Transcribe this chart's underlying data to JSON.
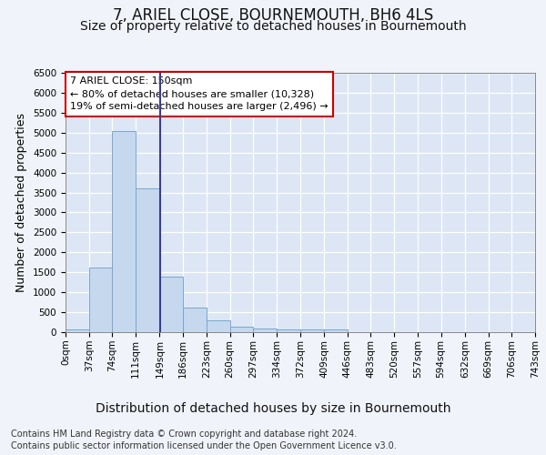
{
  "title": "7, ARIEL CLOSE, BOURNEMOUTH, BH6 4LS",
  "subtitle": "Size of property relative to detached houses in Bournemouth",
  "xlabel": "Distribution of detached houses by size in Bournemouth",
  "ylabel": "Number of detached properties",
  "footer_line1": "Contains HM Land Registry data © Crown copyright and database right 2024.",
  "footer_line2": "Contains public sector information licensed under the Open Government Licence v3.0.",
  "bar_edges": [
    0,
    37,
    74,
    111,
    149,
    186,
    223,
    260,
    297,
    334,
    372,
    409,
    446,
    483,
    520,
    557,
    594,
    632,
    669,
    706,
    743
  ],
  "bar_heights": [
    75,
    1625,
    5050,
    3600,
    1400,
    620,
    290,
    140,
    100,
    75,
    65,
    60,
    0,
    0,
    0,
    0,
    0,
    0,
    0,
    0
  ],
  "bar_color": "#c5d8ee",
  "bar_edge_color": "#7ba7d0",
  "property_size": 150,
  "property_line_color": "#3a3a9a",
  "annotation_text": "7 ARIEL CLOSE: 150sqm\n← 80% of detached houses are smaller (10,328)\n19% of semi-detached houses are larger (2,496) →",
  "annotation_box_color": "#cc0000",
  "ylim": [
    0,
    6500
  ],
  "yticks": [
    0,
    500,
    1000,
    1500,
    2000,
    2500,
    3000,
    3500,
    4000,
    4500,
    5000,
    5500,
    6000,
    6500
  ],
  "bg_color": "#f0f4fa",
  "plot_bg_color": "#dce6f4",
  "grid_color": "#ffffff",
  "title_fontsize": 12,
  "subtitle_fontsize": 10,
  "xlabel_fontsize": 10,
  "ylabel_fontsize": 9,
  "tick_fontsize": 7.5,
  "annotation_fontsize": 8,
  "footer_fontsize": 7
}
